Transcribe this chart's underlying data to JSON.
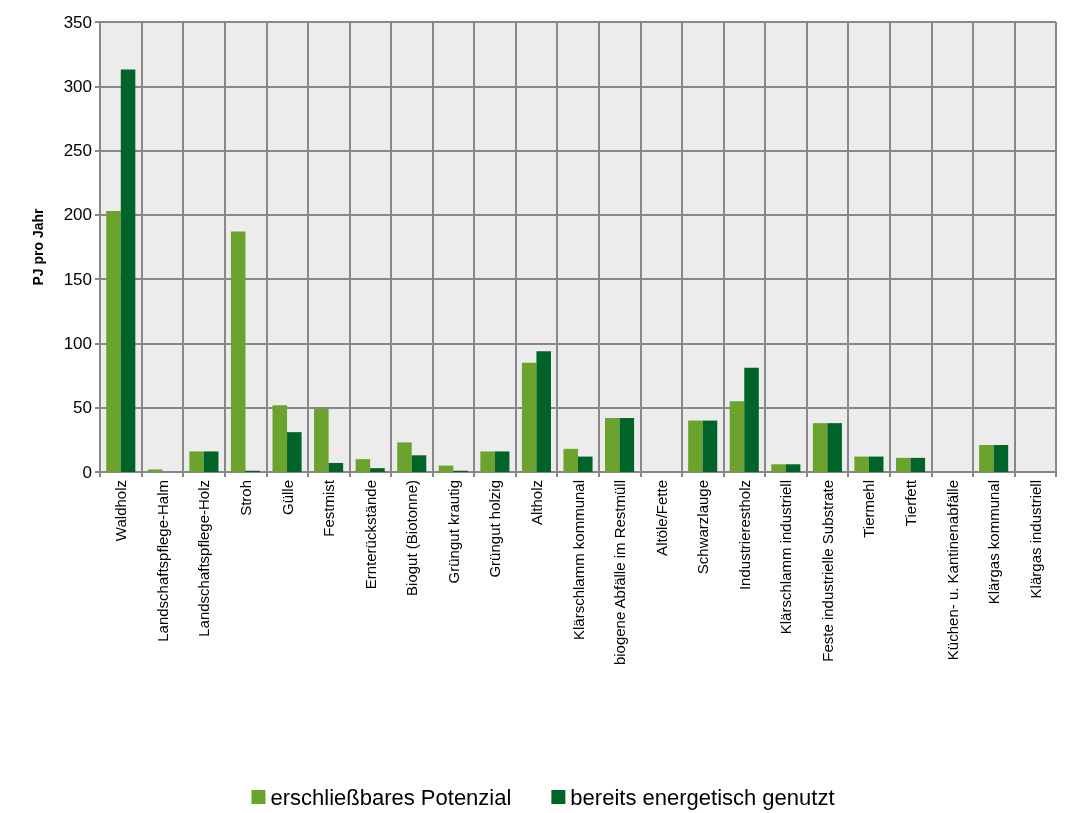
{
  "chart_data": {
    "type": "bar",
    "ylabel": "PJ pro Jahr",
    "categories": [
      "Waldholz",
      "Landschaftspflege-Halm",
      "Landschaftspflege-Holz",
      "Stroh",
      "Gülle",
      "Festmist",
      "Ernterückstände",
      "Biogut (Biotonne)",
      "Grüngut krautig",
      "Grüngut holzig",
      "Altholz",
      "Klärschlamm kommunal",
      "biogene Abfälle im Restmüll",
      "Altöle/Fette",
      "Schwarzlauge",
      "Industrierestholz",
      "Klärschlamm industriell",
      "Feste industrielle Substrate",
      "Tiermehl",
      "Tierfett",
      "Küchen- u. Kantinenabfälle",
      "Klärgas kommunal",
      "Klärgas industriell"
    ],
    "series": [
      {
        "name": "erschließbares Potenzial",
        "color": "#6ca32e",
        "values": [
          203,
          2,
          16,
          187,
          52,
          49,
          10,
          23,
          5,
          16,
          85,
          18,
          42,
          0,
          40,
          55,
          6,
          38,
          12,
          11,
          0,
          21,
          0
        ]
      },
      {
        "name": "bereits energetisch genutzt",
        "color": "#006428",
        "values": [
          313,
          0,
          16,
          1,
          31,
          7,
          3,
          13,
          1,
          16,
          94,
          12,
          42,
          0,
          40,
          81,
          6,
          38,
          12,
          11,
          0,
          21,
          0
        ]
      }
    ],
    "ylim": [
      0,
      350
    ],
    "yticks": [
      0,
      50,
      100,
      150,
      200,
      250,
      300,
      350
    ],
    "grid": true,
    "legend": "bottom"
  }
}
